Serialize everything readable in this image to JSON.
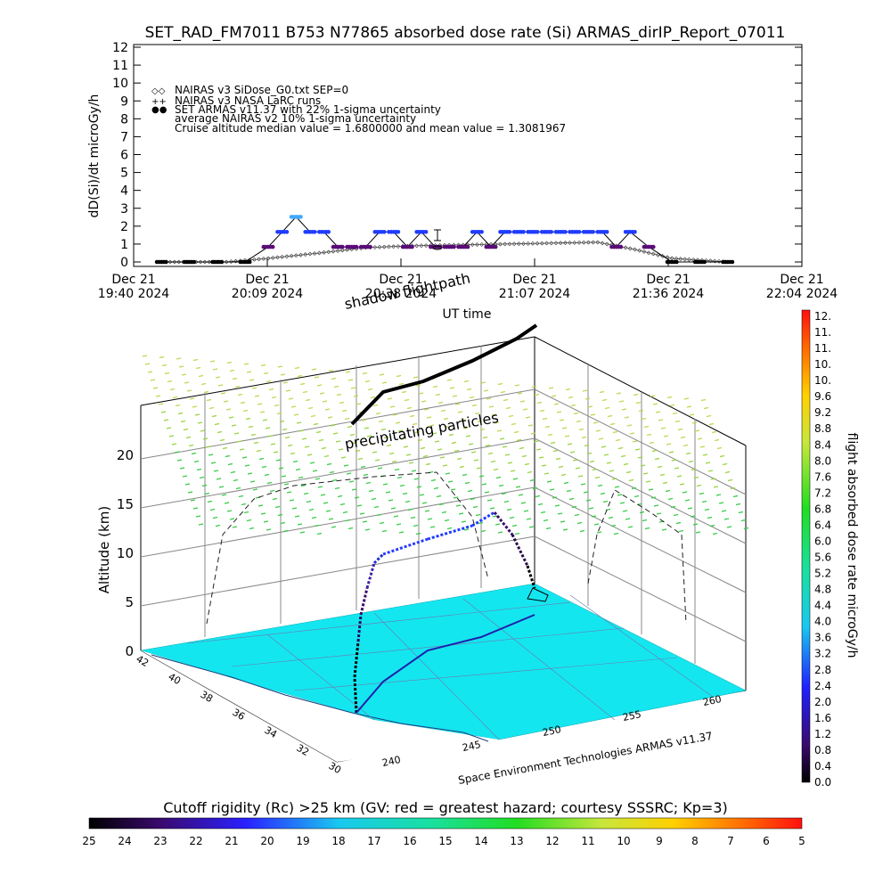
{
  "title": "SET_RAD_FM7011  B753 N77865 absorbed dose rate (Si) ARMAS_dirIP_Report_07011",
  "colors": {
    "blue": "#1f3cff",
    "lightblue": "#3fa8ff",
    "purple": "#5a0b78",
    "black": "#000000",
    "cyan": "#14e6f0",
    "green": "#33cc44",
    "yellow": "#c8d24a"
  },
  "top_chart": {
    "ylabel": "dD(Si)/dt microGy/h",
    "xlabel": "UT time",
    "y_ticks": [
      "0",
      "1",
      "2",
      "3",
      "4",
      "5",
      "6",
      "7",
      "8",
      "9",
      "10",
      "11",
      "12"
    ],
    "x_ticks": [
      {
        "l1": "Dec 21",
        "l2": "19:40 2024"
      },
      {
        "l1": "Dec 21",
        "l2": "20:09 2024"
      },
      {
        "l1": "Dec 21",
        "l2": "20:38 2024"
      },
      {
        "l1": "Dec 21",
        "l2": "21:07 2024"
      },
      {
        "l1": "Dec 21",
        "l2": "21:36 2024"
      },
      {
        "l1": "Dec 21",
        "l2": "22:04 2024"
      }
    ],
    "legend": [
      {
        "symbol": "◇◇",
        "text": "NAIRAS v3 SiDose_G0.txt SEP=0"
      },
      {
        "symbol": "++",
        "text": "NAIRAS v3 NASA LaRC runs"
      },
      {
        "symbol": "●●",
        "text": "SET ARMAS v11.37 with 22% 1-sigma uncertainty"
      },
      {
        "symbol": "",
        "text": "average NAIRAS v2 10% 1-sigma uncertainty"
      },
      {
        "symbol": "",
        "text": "Cruise altitude median value = 1.6800000 and mean value = 1.3081967"
      }
    ]
  },
  "chart_data": [
    {
      "type": "scatter",
      "title": "SET_RAD_FM7011  B753 N77865 absorbed dose rate (Si) ARMAS_dirIP_Report_07011",
      "xlabel": "UT time",
      "ylabel": "dD(Si)/dt microGy/h",
      "xlim": [
        "19:40",
        "22:04"
      ],
      "ylim": [
        0,
        12
      ],
      "series": [
        {
          "name": "SET ARMAS v11.37 with 22% 1-sigma uncertainty",
          "x": [
            "19:46",
            "19:52",
            "19:58",
            "20:04",
            "20:09",
            "20:12",
            "20:15",
            "20:18",
            "20:21",
            "20:24",
            "20:27",
            "20:30",
            "20:33",
            "20:36",
            "20:39",
            "20:42",
            "20:45",
            "20:48",
            "20:51",
            "20:54",
            "20:57",
            "21:00",
            "21:03",
            "21:06",
            "21:09",
            "21:12",
            "21:15",
            "21:18",
            "21:21",
            "21:24",
            "21:27",
            "21:31",
            "21:36",
            "21:42",
            "21:48"
          ],
          "values": [
            0,
            0,
            0,
            0,
            0.84,
            1.68,
            2.52,
            1.68,
            1.68,
            0.84,
            0.84,
            0.84,
            1.68,
            1.68,
            0.84,
            1.68,
            0.84,
            0.84,
            0.84,
            1.68,
            0.84,
            1.68,
            1.68,
            1.68,
            1.68,
            1.68,
            1.68,
            1.68,
            1.68,
            0.84,
            1.68,
            0.84,
            0,
            0,
            0
          ]
        },
        {
          "name": "NAIRAS v3 SiDose_G0.txt SEP=0",
          "x": [
            "19:46",
            "20:00",
            "20:09",
            "20:20",
            "20:30",
            "20:40",
            "20:50",
            "21:00",
            "21:10",
            "21:20",
            "21:28",
            "21:36",
            "21:48"
          ],
          "values": [
            0,
            0,
            0.2,
            0.5,
            0.8,
            0.9,
            0.95,
            1.0,
            1.05,
            1.1,
            0.7,
            0.2,
            0
          ]
        }
      ]
    },
    {
      "type": "scatter",
      "title": "",
      "xlabel": "",
      "ylabel": "Altitude (km)",
      "z_ticks": [
        "0",
        "5",
        "10",
        "15",
        "20"
      ],
      "lat_ticks": [
        "42",
        "40",
        "38",
        "36",
        "34",
        "32",
        "30"
      ],
      "lon_ticks": [
        "240",
        "245",
        "250",
        "255",
        "260"
      ],
      "annotations": [
        "shadow flightpath",
        "precipitating particles"
      ]
    }
  ],
  "plot3d": {
    "shadow_label": "shadow flightpath",
    "particles_label": "precipitating particles",
    "credit": "Space Environment Technologies ARMAS v11.37",
    "altitude_label": "Altitude (km)"
  },
  "colorbar_right": {
    "label": "flight absorbed dose rate microGy/h",
    "ticks": [
      "12.",
      "11.",
      "11.",
      "10.",
      "10.",
      "9.6",
      "9.2",
      "8.8",
      "8.4",
      "8.0",
      "7.6",
      "7.2",
      "6.8",
      "6.4",
      "6.0",
      "5.6",
      "5.2",
      "4.8",
      "4.4",
      "4.0",
      "3.6",
      "3.2",
      "2.8",
      "2.4",
      "2.0",
      "1.6",
      "1.2",
      "0.8",
      "0.4",
      "0.0"
    ]
  },
  "colorbar_bottom": {
    "title": "Cutoff rigidity (Rc) >25 km (GV: red = greatest hazard; courtesy SSSRC; Kp=3)",
    "ticks": [
      "25",
      "24",
      "23",
      "22",
      "21",
      "20",
      "19",
      "18",
      "17",
      "16",
      "15",
      "14",
      "13",
      "12",
      "11",
      "10",
      "9",
      "8",
      "7",
      "6",
      "5"
    ]
  }
}
